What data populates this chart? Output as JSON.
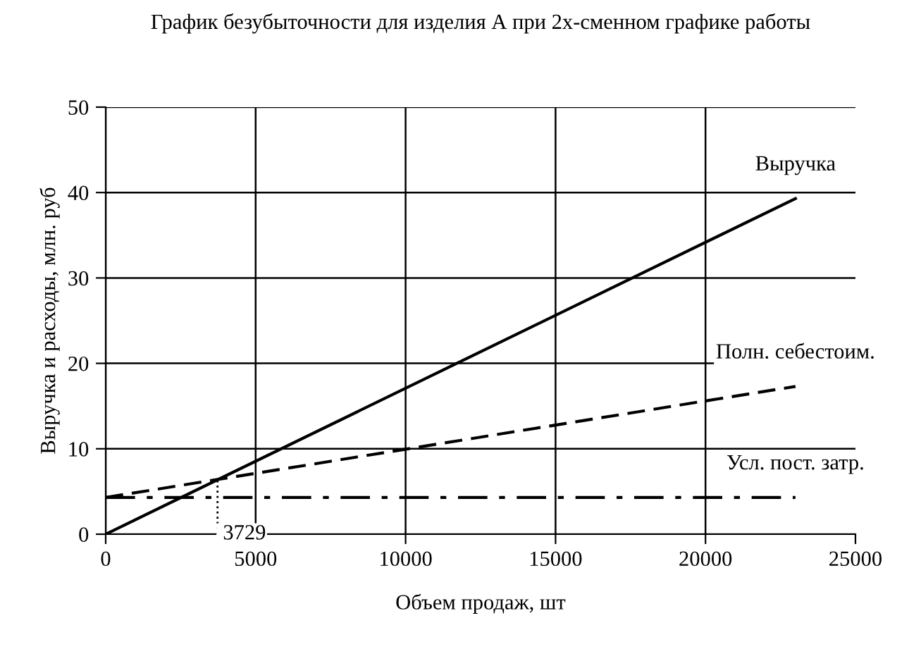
{
  "chart_data": {
    "type": "line",
    "title": "График безубыточности для изделия А при 2х-сменном графике работы",
    "xlabel": "Объем продаж, шт",
    "ylabel": "Выручка и расходы, млн. руб",
    "xlim": [
      0,
      25000
    ],
    "xticks": [
      0,
      5000,
      10000,
      15000,
      20000,
      25000
    ],
    "x": [
      0,
      23000
    ],
    "ylim": [
      0,
      50
    ],
    "yticks": [
      0,
      10,
      20,
      30,
      40,
      50
    ],
    "grid": true,
    "legend": false,
    "marker": "none",
    "series": [
      {
        "name": "Выручка",
        "color": "#000000",
        "line_style": "solid",
        "values": [
          0,
          39.3
        ]
      },
      {
        "name": "Полн. себестоим.",
        "color": "#000000",
        "line_style": "dashed",
        "values": [
          4.3,
          17.3
        ]
      },
      {
        "name": "Усл. пост. затр.",
        "color": "#000000",
        "line_style": "dashdot",
        "values": [
          4.3,
          4.3
        ]
      }
    ],
    "ref_lines": [
      {
        "axis": "x",
        "value": 3729,
        "label": "3729",
        "line_style": "dotted",
        "color": "#000000"
      }
    ]
  }
}
